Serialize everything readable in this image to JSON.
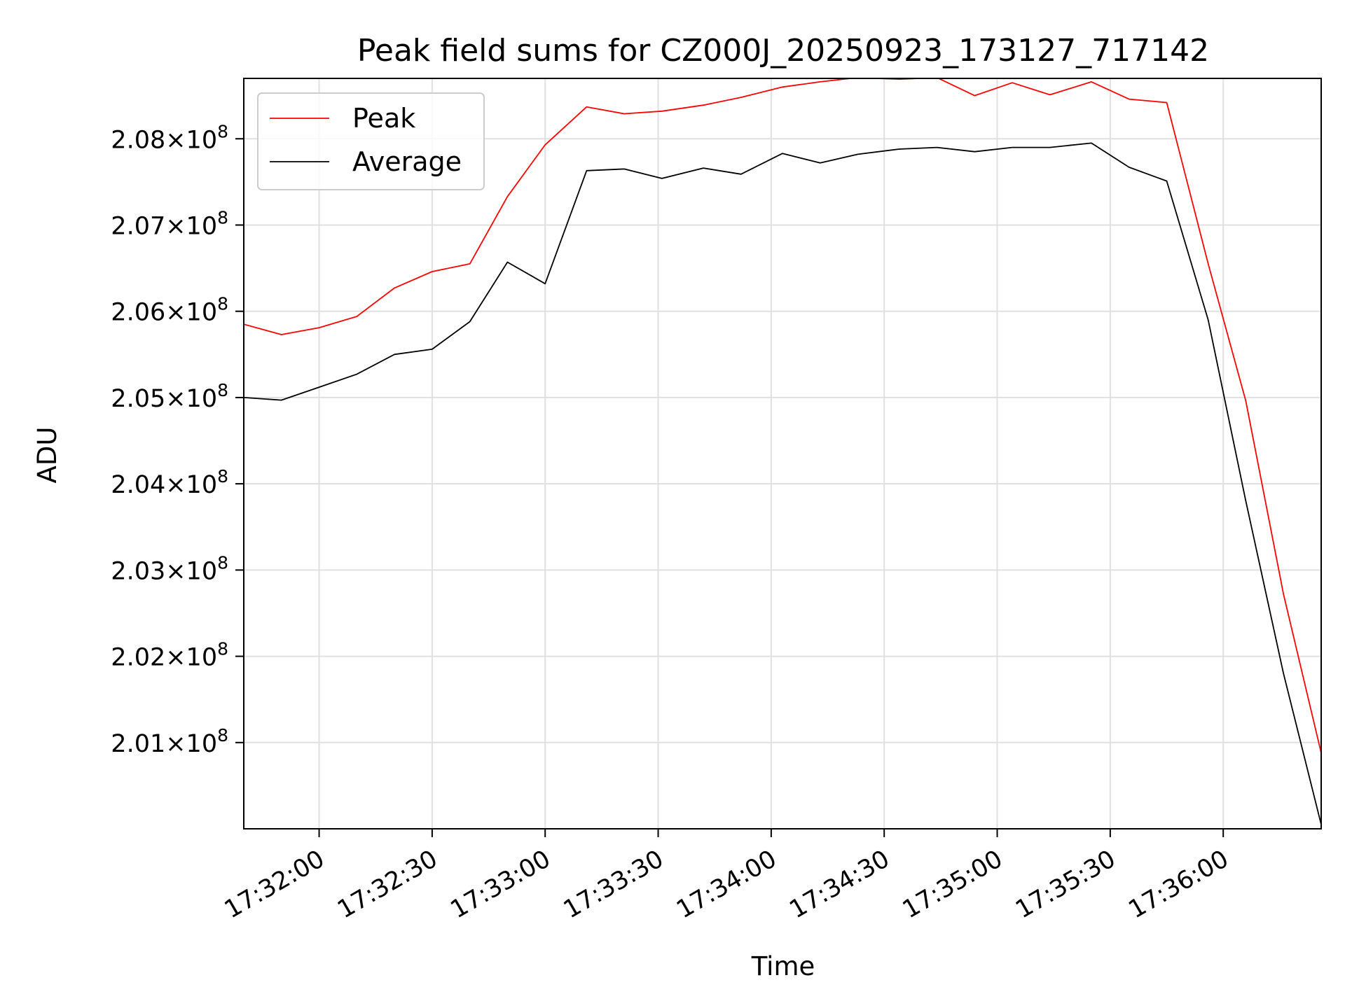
{
  "chart_data": {
    "type": "line",
    "title": "Peak field sums for CZ000J_20250923_173127_717142",
    "xlabel": "Time",
    "ylabel": "ADU",
    "x_tick_labels": [
      "17:32:00",
      "17:32:30",
      "17:33:00",
      "17:33:30",
      "17:34:00",
      "17:34:30",
      "17:35:00",
      "17:35:30",
      "17:36:00"
    ],
    "y_tick_mantissas": [
      "2.01",
      "2.02",
      "2.03",
      "2.04",
      "2.05",
      "2.06",
      "2.07",
      "2.08"
    ],
    "y_tick_exponent": "8",
    "y_tick_times": "×",
    "y_tick_base": "10",
    "xlim": [
      "17:31:40",
      "17:36:26"
    ],
    "ylim": [
      2.0,
      2.087
    ],
    "y_unit_multiplier": "1e8",
    "grid": true,
    "legend_position": "upper-left",
    "x": [
      "17:31:40",
      "17:31:50",
      "17:32:00",
      "17:32:10",
      "17:32:20",
      "17:32:30",
      "17:32:40",
      "17:32:50",
      "17:33:00",
      "17:33:11",
      "17:33:21",
      "17:33:31",
      "17:33:42",
      "17:33:52",
      "17:34:03",
      "17:34:13",
      "17:34:23",
      "17:34:34",
      "17:34:44",
      "17:34:54",
      "17:35:04",
      "17:35:14",
      "17:35:25",
      "17:35:35",
      "17:35:45",
      "17:35:56",
      "17:36:06",
      "17:36:16",
      "17:36:26"
    ],
    "series": [
      {
        "name": "Peak",
        "color": "#ff0000",
        "values": [
          2.0585,
          2.0573,
          2.0581,
          2.0594,
          2.0627,
          2.0646,
          2.0655,
          2.0733,
          2.0793,
          2.0837,
          2.0829,
          2.0832,
          2.0839,
          2.0848,
          2.086,
          2.0866,
          2.0871,
          2.0869,
          2.0871,
          2.085,
          2.0865,
          2.0851,
          2.0866,
          2.0846,
          2.0842,
          2.0655,
          2.0496,
          2.0272,
          2.0088
        ]
      },
      {
        "name": "Average",
        "color": "#000000",
        "values": [
          2.05,
          2.0497,
          2.0512,
          2.0527,
          2.055,
          2.0556,
          2.0588,
          2.0657,
          2.0632,
          2.0763,
          2.0765,
          2.0754,
          2.0766,
          2.0759,
          2.0783,
          2.0772,
          2.0782,
          2.0788,
          2.079,
          2.0785,
          2.079,
          2.079,
          2.0795,
          2.0767,
          2.0751,
          2.059,
          2.038,
          2.018,
          2.0005
        ]
      }
    ]
  }
}
